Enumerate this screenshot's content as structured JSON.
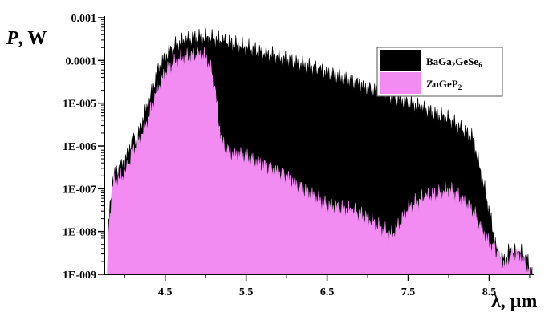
{
  "chart_data": {
    "type": "area",
    "title": "",
    "ylabel_symbol": "P",
    "ylabel_unit": ", W",
    "xlabel_symbol": "λ",
    "xlabel_unit": ", μm",
    "yscale": "log",
    "xlim": [
      3.75,
      9.05
    ],
    "ylim": [
      1e-09,
      0.001
    ],
    "grid": false,
    "legend_position": "top-right",
    "x_ticks": [
      {
        "value": 4.5,
        "label": "4.5"
      },
      {
        "value": 5.5,
        "label": "5.5"
      },
      {
        "value": 6.5,
        "label": "6.5"
      },
      {
        "value": 7.5,
        "label": "7.5"
      },
      {
        "value": 8.5,
        "label": "8.5"
      }
    ],
    "y_ticks": [
      {
        "value": 0.001,
        "label": "0.001"
      },
      {
        "value": 0.0001,
        "label": "0.0001"
      },
      {
        "value": 1e-05,
        "label": "1E-005"
      },
      {
        "value": 1e-06,
        "label": "1E-006"
      },
      {
        "value": 1e-07,
        "label": "1E-007"
      },
      {
        "value": 1e-08,
        "label": "1E-008"
      },
      {
        "value": 1e-09,
        "label": "1E-009"
      }
    ],
    "series": [
      {
        "name_main": "BaGa",
        "name_sub1": "2",
        "name_mid": "GeSe",
        "name_sub2": "6",
        "color": "#000000",
        "x": [
          3.79,
          3.8,
          3.85,
          3.9,
          4.0,
          4.1,
          4.15,
          4.2,
          4.3,
          4.4,
          4.5,
          4.6,
          4.7,
          4.8,
          4.9,
          5.0,
          5.1,
          5.2,
          5.5,
          5.8,
          6.0,
          6.5,
          7.0,
          7.5,
          8.0,
          8.3,
          8.5,
          8.6,
          8.7,
          8.75,
          8.8,
          8.9,
          9.0,
          9.03
        ],
        "y": [
          1e-09,
          1.3e-08,
          1.6e-07,
          2.5e-07,
          4e-07,
          1.5e-06,
          1.2e-06,
          3e-06,
          1e-05,
          5e-05,
          0.00012,
          0.0002,
          0.00026,
          0.0003,
          0.00034,
          0.00033,
          0.0003,
          0.00028,
          0.00019,
          0.00013,
          0.0001,
          5e-05,
          2.2e-05,
          1e-05,
          4e-06,
          1.5e-06,
          3e-08,
          3e-09,
          2e-09,
          3.5e-09,
          3e-09,
          3e-09,
          1.6e-09,
          1e-09
        ]
      },
      {
        "name_main": "ZnGeP",
        "name_sub1": "2",
        "name_mid": "",
        "name_sub2": "",
        "color": "#f28cf2",
        "x": [
          3.79,
          3.8,
          3.85,
          3.9,
          4.0,
          4.1,
          4.2,
          4.3,
          4.4,
          4.5,
          4.6,
          4.7,
          4.8,
          4.9,
          5.0,
          5.1,
          5.15,
          5.2,
          5.3,
          5.5,
          5.8,
          6.0,
          6.3,
          6.5,
          6.8,
          7.0,
          7.2,
          7.3,
          7.4,
          7.5,
          7.7,
          8.0,
          8.1,
          8.3,
          8.5,
          8.6,
          8.7,
          8.75,
          8.8,
          8.9,
          9.0
        ],
        "y": [
          1e-09,
          8e-09,
          1.2e-07,
          1.6e-07,
          2e-07,
          7e-07,
          1.6e-06,
          4.5e-06,
          2e-05,
          5e-05,
          8e-05,
          0.00011,
          0.00012,
          0.00013,
          0.00012,
          4e-05,
          5e-06,
          1.2e-06,
          6.5e-07,
          5.5e-07,
          2.8e-07,
          1.8e-07,
          7e-08,
          4e-08,
          3e-08,
          2e-08,
          1e-08,
          8e-09,
          1.5e-08,
          3.5e-08,
          6e-08,
          9e-08,
          7e-08,
          3e-08,
          5e-09,
          3e-09,
          1.5e-09,
          2.5e-09,
          3e-09,
          2.5e-09,
          1e-09
        ]
      }
    ]
  }
}
